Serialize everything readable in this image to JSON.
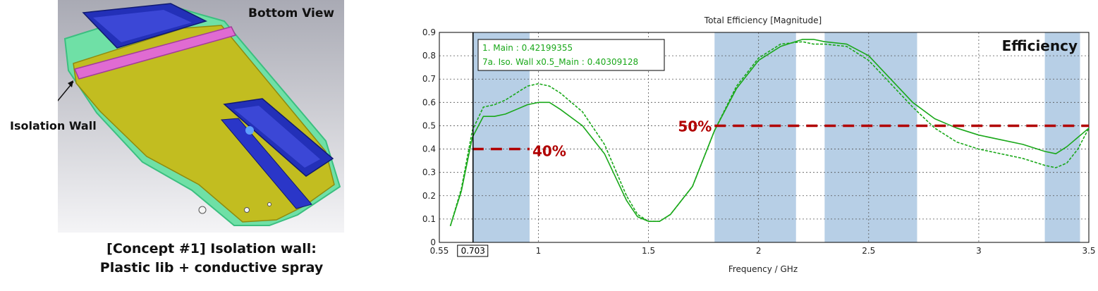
{
  "left_panel": {
    "view_label": "Bottom View",
    "callout_label": "Isolation Wall",
    "caption_line1": "[Concept #1] Isolation wall:",
    "caption_line2": "Plastic lib + conductive spray"
  },
  "chart_data": {
    "type": "line",
    "title": "Total Efficiency [Magnitude]",
    "xlabel": "Frequency / GHz",
    "ylabel": "",
    "xlim": [
      0.55,
      3.5
    ],
    "ylim": [
      0,
      0.9
    ],
    "x_ticks": [
      "0.55",
      "1",
      "1.5",
      "2",
      "2.5",
      "3",
      "3.5"
    ],
    "y_ticks": [
      "0",
      "0.1",
      "0.2",
      "0.3",
      "0.4",
      "0.5",
      "0.6",
      "0.7",
      "0.8",
      "0.9"
    ],
    "grid": true,
    "marker": {
      "x": 0.703,
      "label": "0.703"
    },
    "legend": {
      "position": "top-left",
      "entries": [
        "1. Main : 0.42199355",
        "7a. Iso. Wall x0.5_Main : 0.40309128"
      ]
    },
    "corner_label": "Efficiency",
    "colors": {
      "series": "#1aa81a",
      "band": "#b7cfe6",
      "threshold": "#b10000"
    },
    "bands": [
      [
        0.7,
        0.96
      ],
      [
        1.8,
        2.17
      ],
      [
        2.3,
        2.72
      ],
      [
        3.3,
        3.46
      ]
    ],
    "thresholds": [
      {
        "label": "40%",
        "value": 0.4,
        "x_range": [
          0.7,
          0.96
        ]
      },
      {
        "label": "50%",
        "value": 0.5,
        "x_range": [
          1.8,
          3.5
        ]
      }
    ],
    "series": [
      {
        "name": "1. Main : 0.42199355",
        "style": "solid",
        "x": [
          0.6,
          0.65,
          0.7,
          0.75,
          0.8,
          0.85,
          0.9,
          0.95,
          1.0,
          1.05,
          1.1,
          1.2,
          1.3,
          1.4,
          1.45,
          1.5,
          1.55,
          1.6,
          1.7,
          1.8,
          1.9,
          2.0,
          2.1,
          2.2,
          2.25,
          2.3,
          2.4,
          2.5,
          2.6,
          2.7,
          2.8,
          2.9,
          3.0,
          3.1,
          3.2,
          3.3,
          3.35,
          3.4,
          3.45,
          3.5
        ],
        "y": [
          0.07,
          0.22,
          0.45,
          0.54,
          0.54,
          0.55,
          0.57,
          0.59,
          0.6,
          0.6,
          0.57,
          0.5,
          0.38,
          0.18,
          0.11,
          0.09,
          0.09,
          0.12,
          0.24,
          0.48,
          0.66,
          0.78,
          0.84,
          0.87,
          0.87,
          0.86,
          0.85,
          0.8,
          0.7,
          0.6,
          0.53,
          0.49,
          0.46,
          0.44,
          0.42,
          0.39,
          0.38,
          0.41,
          0.45,
          0.49
        ]
      },
      {
        "name": "7a. Iso. Wall x0.5_Main : 0.40309128",
        "style": "dashed",
        "x": [
          0.6,
          0.65,
          0.7,
          0.75,
          0.8,
          0.85,
          0.9,
          0.95,
          1.0,
          1.05,
          1.1,
          1.2,
          1.3,
          1.4,
          1.45,
          1.5,
          1.55,
          1.6,
          1.7,
          1.8,
          1.9,
          2.0,
          2.1,
          2.2,
          2.25,
          2.3,
          2.4,
          2.5,
          2.6,
          2.7,
          2.8,
          2.9,
          3.0,
          3.1,
          3.2,
          3.3,
          3.35,
          3.4,
          3.45,
          3.5
        ],
        "y": [
          0.07,
          0.23,
          0.48,
          0.58,
          0.59,
          0.61,
          0.64,
          0.67,
          0.68,
          0.67,
          0.64,
          0.56,
          0.42,
          0.2,
          0.12,
          0.09,
          0.09,
          0.12,
          0.24,
          0.48,
          0.67,
          0.79,
          0.85,
          0.86,
          0.85,
          0.85,
          0.84,
          0.78,
          0.68,
          0.58,
          0.49,
          0.43,
          0.4,
          0.38,
          0.36,
          0.33,
          0.32,
          0.34,
          0.4,
          0.49
        ]
      }
    ]
  }
}
